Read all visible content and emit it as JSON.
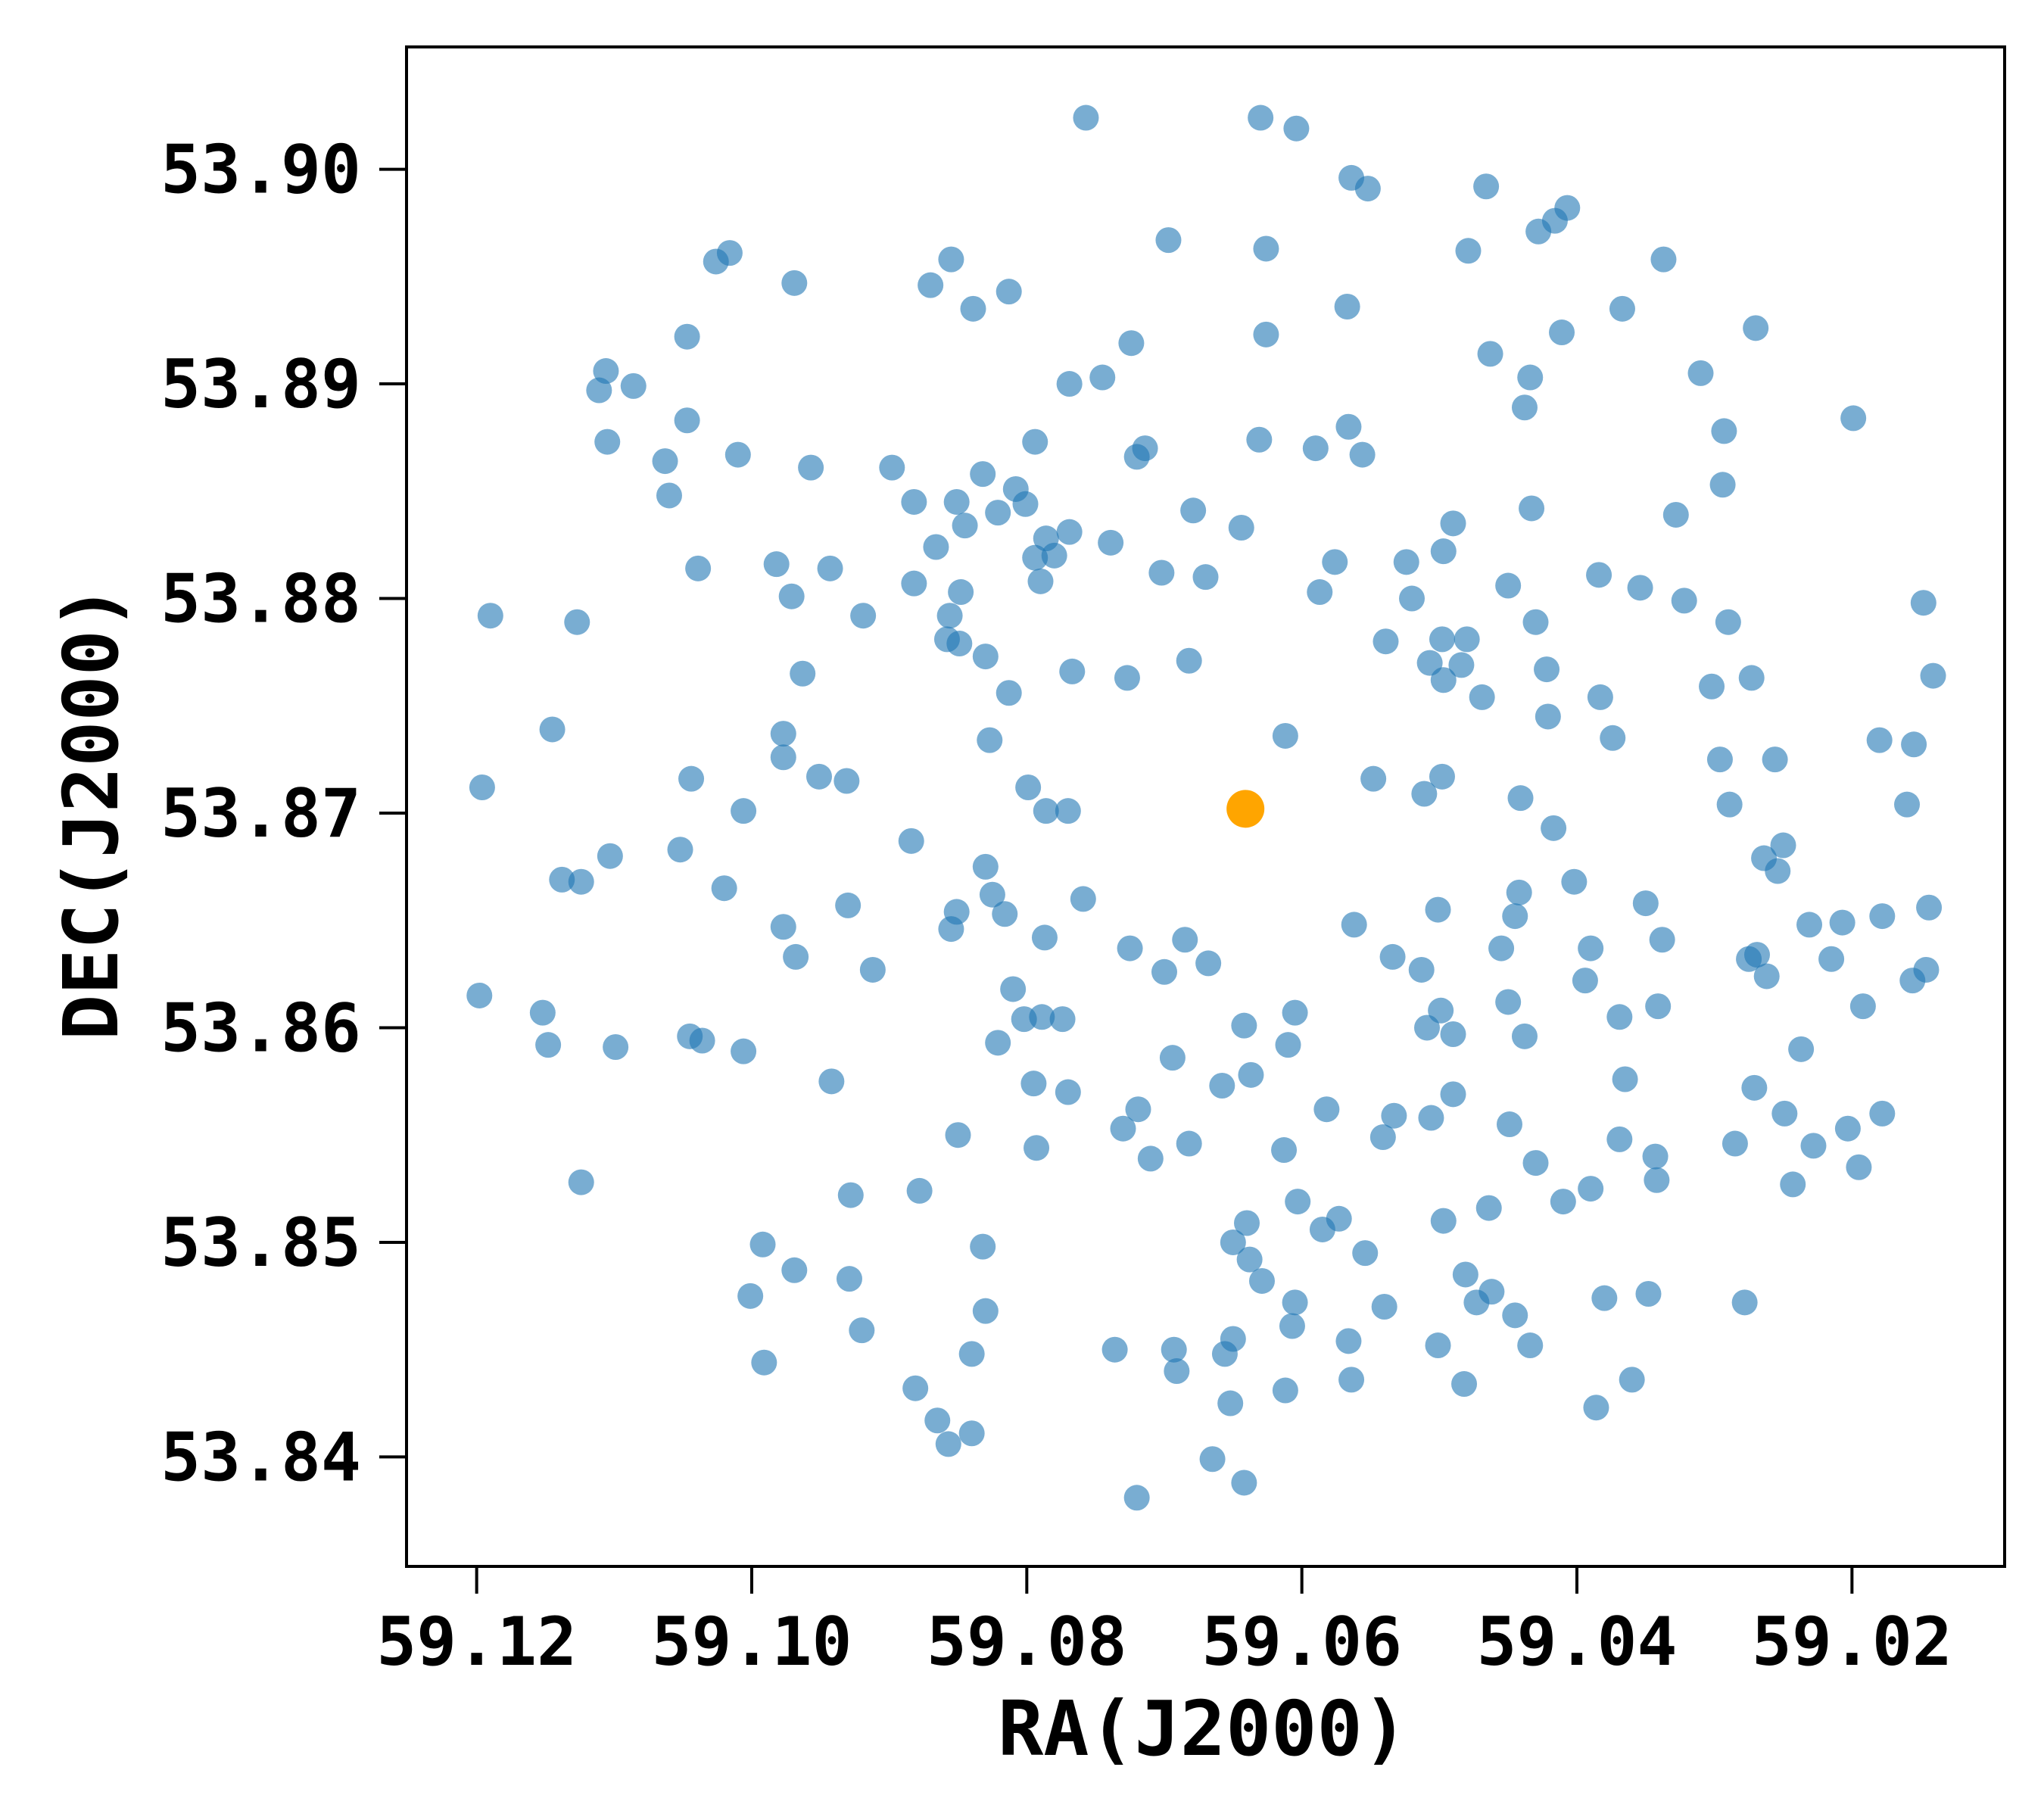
{
  "chart_data": {
    "type": "scatter",
    "xlabel": "RA(J2000)",
    "ylabel": "DEC(J2000)",
    "xlim": [
      59.1251,
      59.0089
    ],
    "ylim": [
      53.8349,
      53.9057
    ],
    "xticks": [
      59.12,
      {
        "value": 59.1,
        "label": "59.10"
      },
      59.08,
      59.06,
      59.04,
      59.02
    ],
    "yticks": [
      53.84,
      53.85,
      53.86,
      53.87,
      53.88,
      53.89,
      {
        "value": 53.9,
        "label": "53.90"
      }
    ],
    "series": [
      {
        "color": "#1f77b4",
        "opacity": 0.6,
        "x": [
          59.0757,
          59.063,
          59.0604,
          59.0564,
          59.0552,
          59.0466,
          59.0407,
          59.0416,
          59.0428,
          59.0479,
          59.0626,
          59.0697,
          59.0855,
          59.087,
          59.0839,
          59.0813,
          59.1016,
          59.1026,
          59.0969,
          59.0337,
          59.0367,
          59.0567,
          59.0626,
          59.0724,
          59.0745,
          59.0769,
          59.0463,
          59.0411,
          59.0434,
          59.0438,
          59.031,
          59.027,
          59.0199,
          59.0293,
          59.0294,
          59.0328,
          59.0433,
          59.049,
          59.0497,
          59.0524,
          59.052,
          59.0576,
          59.0587,
          59.0566,
          59.0556,
          59.059,
          59.0631,
          59.0644,
          59.067,
          59.0679,
          59.0702,
          59.0714,
          59.072,
          59.0739,
          59.0769,
          59.0786,
          59.078,
          59.0794,
          59.079,
          59.0794,
          59.0808,
          59.0801,
          59.0821,
          59.0832,
          59.0845,
          59.0851,
          59.0866,
          59.0882,
          59.0898,
          59.0882,
          59.0848,
          59.0856,
          59.0858,
          59.0849,
          59.083,
          59.0813,
          59.0767,
          59.0727,
          59.0682,
          59.0919,
          59.0943,
          59.0971,
          59.0982,
          59.0957,
          59.101,
          59.1039,
          59.1047,
          59.1047,
          59.1063,
          59.106,
          59.1106,
          59.1111,
          59.1086,
          59.1105,
          59.119,
          59.1127,
          59.0963,
          59.0977,
          59.0977,
          59.0951,
          59.0931,
          59.0827,
          59.0799,
          59.0786,
          59.077,
          59.0884,
          59.1006,
          59.1044,
          59.1052,
          59.1145,
          59.1196,
          59.1138,
          59.1124,
          59.1103,
          59.102,
          59.093,
          59.0977,
          59.0968,
          59.0912,
          59.083,
          59.0825,
          59.0816,
          59.0851,
          59.0855,
          59.0759,
          59.0787,
          59.081,
          59.0802,
          59.0789,
          59.0774,
          59.0821,
          59.0795,
          59.077,
          59.0793,
          59.085,
          59.0878,
          59.0725,
          59.07,
          59.0685,
          59.0668,
          59.0642,
          59.0605,
          59.061,
          59.0637,
          59.0658,
          59.0694,
          59.0719,
          59.073,
          59.071,
          59.0682,
          59.0613,
          59.0603,
          59.0573,
          59.0585,
          59.064,
          59.065,
          59.0638,
          59.0629,
          59.0605,
          59.0607,
          59.065,
          59.0656,
          59.0693,
          59.0691,
          59.0736,
          59.0652,
          59.0612,
          59.0665,
          59.0642,
          59.072,
          59.0566,
          59.0564,
          59.054,
          59.0554,
          59.0541,
          59.0533,
          59.0582,
          59.0506,
          59.0497,
          59.049,
          59.0509,
          59.0499,
          59.049,
          59.0513,
          59.0534,
          59.0562,
          59.0501,
          59.0548,
          59.0511,
          59.0498,
          59.0612,
          59.0539,
          59.0507,
          59.0497,
          59.0498,
          59.048,
          59.0484,
          59.0469,
          59.045,
          59.043,
          59.0422,
          59.0421,
          59.0383,
          59.0374,
          59.0384,
          59.0354,
          59.0322,
          59.029,
          59.0302,
          59.0273,
          59.0296,
          59.0289,
          59.0256,
          59.025,
          59.0264,
          59.0254,
          59.018,
          59.0155,
          59.0148,
          59.0141,
          59.016,
          59.0144,
          59.0178,
          59.0207,
          59.0231,
          59.0215,
          59.0269,
          59.0275,
          59.0262,
          59.0146,
          59.0156,
          59.0192,
          59.0203,
          59.0195,
          59.0178,
          59.0237,
          59.0228,
          59.0243,
          59.0249,
          59.0271,
          59.0285,
          59.0278,
          59.0341,
          59.0338,
          59.035,
          59.0369,
          59.0365,
          59.039,
          59.0394,
          59.0402,
          59.0417,
          59.0441,
          59.0442,
          59.0445,
          59.0455,
          59.045,
          59.0438,
          59.0449,
          59.043,
          59.0464,
          59.0481,
          59.0462,
          59.0473,
          59.0445,
          59.0434,
          59.0501,
          59.0482,
          59.041,
          59.039,
          59.0369,
          59.0343,
          59.0342,
          59.038,
          59.0348,
          59.036,
          59.0386,
          59.0991,
          59.1001,
          59.0992,
          59.0969,
          59.0929,
          59.092,
          59.0928,
          59.0942,
          59.1006,
          59.1045,
          59.1036,
          59.1099,
          59.1148,
          59.1152,
          59.1198,
          59.1124,
          59.0832,
          59.083,
          59.084,
          59.0881,
          59.0865,
          59.0857,
          59.084
        ],
        "y": [
          53.9024,
          53.9024,
          53.9019,
          53.8996,
          53.8991,
          53.8992,
          53.8982,
          53.8976,
          53.8971,
          53.8962,
          53.8963,
          53.8967,
          53.8958,
          53.8946,
          53.8935,
          53.8943,
          53.8961,
          53.8957,
          53.8947,
          53.8958,
          53.8935,
          53.8936,
          53.8923,
          53.8919,
          53.8903,
          53.89,
          53.8914,
          53.8924,
          53.8903,
          53.8889,
          53.8905,
          53.8926,
          53.8884,
          53.8878,
          53.8853,
          53.8839,
          53.8842,
          53.8835,
          53.8822,
          53.8817,
          53.88,
          53.8817,
          53.8803,
          53.888,
          53.8867,
          53.887,
          53.8874,
          53.8833,
          53.881,
          53.8841,
          53.8812,
          53.887,
          53.8866,
          53.8826,
          53.8831,
          53.8828,
          53.882,
          53.8819,
          53.8808,
          53.8873,
          53.8851,
          53.8844,
          53.884,
          53.8858,
          53.8834,
          53.8845,
          53.8824,
          53.8845,
          53.8861,
          53.8807,
          53.8803,
          53.8792,
          53.8781,
          53.8779,
          53.8773,
          53.8756,
          53.8766,
          53.8763,
          53.8771,
          53.8792,
          53.8814,
          53.8801,
          53.8816,
          53.8861,
          53.8867,
          53.8814,
          53.8922,
          53.8883,
          53.8864,
          53.8848,
          53.8906,
          53.8897,
          53.8899,
          53.8873,
          53.8792,
          53.8789,
          53.8765,
          53.8737,
          53.8726,
          53.8717,
          53.8715,
          53.8734,
          53.8712,
          53.8701,
          53.8701,
          53.8687,
          53.8701,
          53.8716,
          53.8683,
          53.8739,
          53.8712,
          53.8669,
          53.8668,
          53.868,
          53.8665,
          53.8657,
          53.8647,
          53.8633,
          53.8627,
          53.8675,
          53.8662,
          53.8653,
          53.8654,
          53.8646,
          53.866,
          53.8642,
          53.8618,
          53.8604,
          53.8605,
          53.8604,
          53.8593,
          53.8574,
          53.857,
          53.8544,
          53.855,
          53.8524,
          53.8637,
          53.8626,
          53.8641,
          53.863,
          53.8601,
          53.8607,
          53.8592,
          53.8578,
          53.8573,
          53.8586,
          53.8562,
          53.8553,
          53.8539,
          53.8546,
          53.8543,
          53.8519,
          53.8511,
          53.8506,
          53.8509,
          53.85,
          53.8492,
          53.8482,
          53.8472,
          53.8461,
          53.8455,
          53.8448,
          53.845,
          53.844,
          53.845,
          53.8425,
          53.8431,
          53.8399,
          53.8388,
          53.8381,
          53.8454,
          53.8436,
          53.847,
          53.8495,
          53.8549,
          53.8559,
          53.8562,
          53.8558,
          53.851,
          53.8569,
          53.86,
          53.8608,
          53.8597,
          53.8627,
          53.8633,
          53.8648,
          53.8655,
          53.8716,
          53.8709,
          53.8717,
          53.8736,
          53.878,
          53.877,
          53.8762,
          53.8781,
          53.8781,
          53.8769,
          53.8754,
          53.8806,
          53.8789,
          53.8767,
          53.8745,
          53.8754,
          53.8735,
          53.8811,
          53.8805,
          53.8799,
          53.8789,
          53.8759,
          53.8763,
          53.8725,
          53.8704,
          53.8725,
          53.8685,
          53.8679,
          53.8673,
          53.8734,
          53.8732,
          53.8798,
          53.8764,
          53.8704,
          53.8656,
          53.8652,
          53.8649,
          53.8648,
          53.8632,
          53.8634,
          53.8632,
          53.8624,
          53.8627,
          53.8622,
          53.861,
          53.8553,
          53.8535,
          53.856,
          53.859,
          53.8545,
          53.8527,
          53.856,
          53.8572,
          53.8546,
          53.8472,
          53.861,
          53.8641,
          53.8658,
          53.8605,
          53.8576,
          53.8637,
          53.8622,
          53.8668,
          53.8693,
          53.8707,
          53.8663,
          53.8652,
          53.8637,
          53.8612,
          53.8596,
          53.8555,
          53.8537,
          53.8516,
          53.8485,
          53.8477,
          53.8472,
          53.8466,
          53.8452,
          53.8452,
          53.8434,
          53.8519,
          53.8525,
          53.8548,
          53.854,
          53.8529,
          53.8474,
          53.8476,
          53.8436,
          53.8423,
          53.8444,
          53.8475,
          53.8499,
          53.8487,
          53.8483,
          53.8459,
          53.8522,
          53.8575,
          53.8589,
          53.8596,
          53.8594,
          53.8591,
          53.8592,
          53.8607,
          53.8615,
          53.8528,
          53.8498,
          53.8468,
          53.8448,
          53.8432,
          53.8417,
          53.8406,
          53.8411
        ]
      },
      {
        "color": "#ffa500",
        "opacity": 1,
        "x": [
          59.0641
        ],
        "y": [
          53.8702
        ]
      }
    ]
  }
}
